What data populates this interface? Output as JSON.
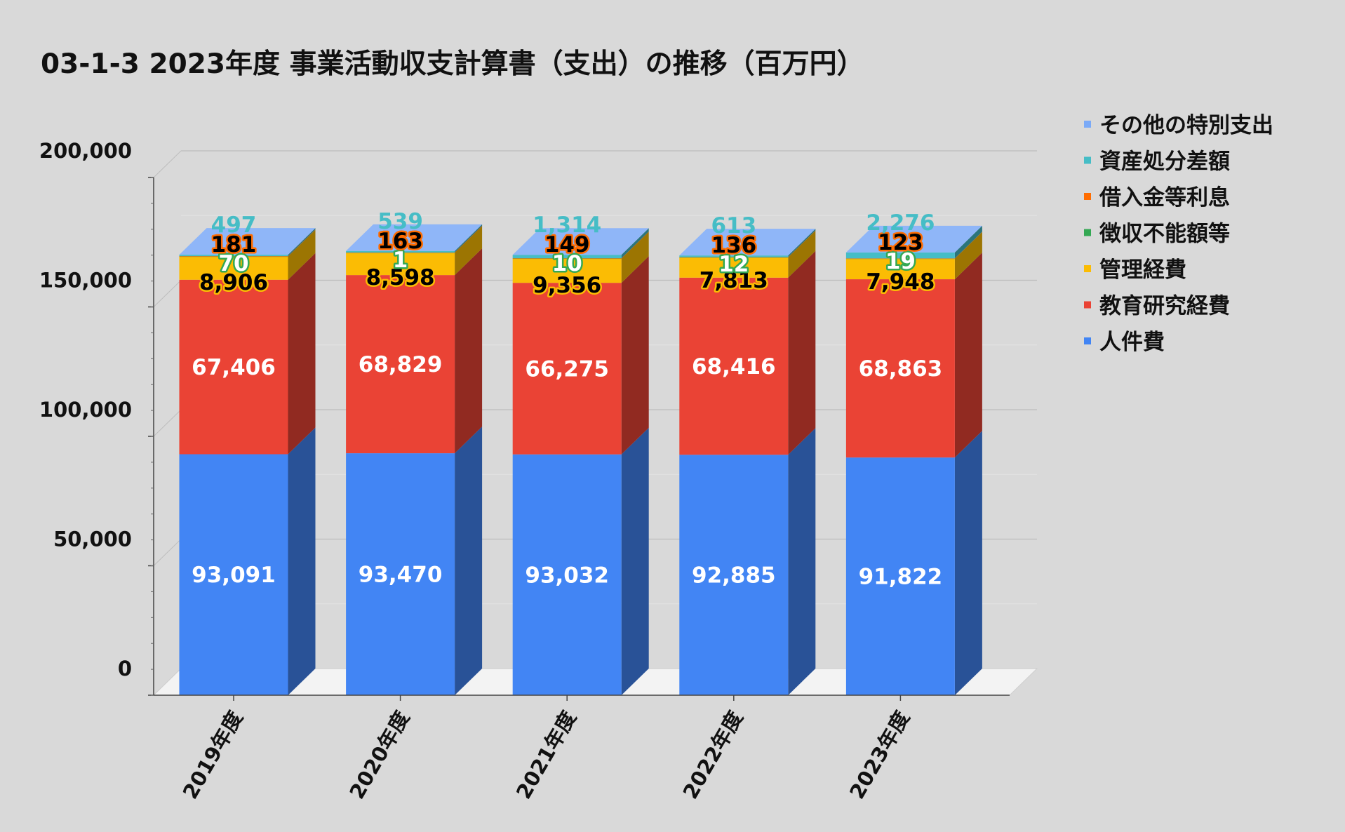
{
  "chart_data": {
    "type": "bar",
    "stacked": true,
    "three_d": true,
    "title": "03-1-3 2023年度 事業活動収支計算書（支出）の推移（百万円）",
    "categories": [
      "2019年度",
      "2020年度",
      "2021年度",
      "2022年度",
      "2023年度"
    ],
    "ylim": [
      0,
      200000
    ],
    "yticks": [
      "0",
      "50,000",
      "100,000",
      "150,000",
      "200,000"
    ],
    "ytick_values": [
      0,
      50000,
      100000,
      150000,
      200000
    ],
    "grid": true,
    "legend_position": "right",
    "series": [
      {
        "name": "人件費",
        "color": "#4285f4",
        "label_color": "#ffffff",
        "label_outline": "",
        "values": [
          93091,
          93470,
          93032,
          92885,
          91822
        ],
        "labels": [
          "93,091",
          "93,470",
          "93,032",
          "92,885",
          "91,822"
        ]
      },
      {
        "name": "教育研究経費",
        "color": "#ea4335",
        "label_color": "#ffffff",
        "label_outline": "",
        "values": [
          67406,
          68829,
          66275,
          68416,
          68863
        ],
        "labels": [
          "67,406",
          "68,829",
          "66,275",
          "68,416",
          "68,863"
        ]
      },
      {
        "name": "管理経費",
        "color": "#fbbc04",
        "label_color": "#000000",
        "label_outline": "#fbbc04",
        "values": [
          8906,
          8598,
          9356,
          7813,
          7948
        ],
        "labels": [
          "8,906",
          "8,598",
          "9,356",
          "7,813",
          "7,948"
        ]
      },
      {
        "name": "徴収不能額等",
        "color": "#34a853",
        "label_color": "#ffffff",
        "label_outline": "#34a853",
        "values": [
          70,
          1,
          10,
          12,
          19
        ],
        "labels": [
          "70",
          "1",
          "10",
          "12",
          "19"
        ]
      },
      {
        "name": "借入金等利息",
        "color": "#ff6d01",
        "label_color": "#000000",
        "label_outline": "#ff6d01",
        "values": [
          181,
          163,
          149,
          136,
          123
        ],
        "labels": [
          "181",
          "163",
          "149",
          "136",
          "123"
        ]
      },
      {
        "name": "資産処分差額",
        "color": "#46bdc6",
        "label_color": "#46bdc6",
        "label_outline": "",
        "values": [
          497,
          539,
          1314,
          613,
          2276
        ],
        "labels": [
          "497",
          "539",
          "1,314",
          "613",
          "2,276"
        ]
      },
      {
        "name": "その他の特別支出",
        "color": "#7baaf7",
        "label_color": "#46bdc6",
        "label_outline": "",
        "values": [
          0,
          0,
          0,
          0,
          0
        ],
        "labels": []
      }
    ],
    "legend_order": [
      "その他の特別支出",
      "資産処分差額",
      "借入金等利息",
      "徴収不能額等",
      "管理経費",
      "教育研究経費",
      "人件費"
    ]
  }
}
